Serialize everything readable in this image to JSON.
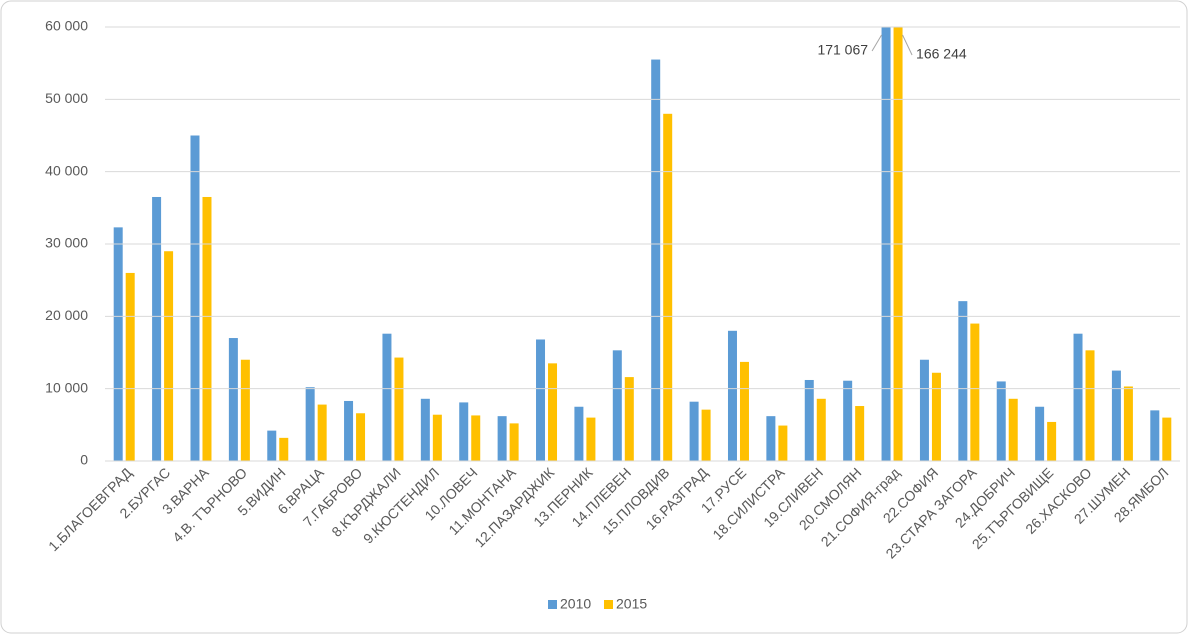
{
  "chart_data": {
    "type": "bar",
    "categories": [
      "1.БЛАГОЕВГРАД",
      "2.БУРГАС",
      "3.ВАРНА",
      "4.В. ТЪРНОВО",
      "5.ВИДИН",
      "6.ВРАЦА",
      "7.ГАБРОВО",
      "8.КЪРДЖАЛИ",
      "9.КЮСТЕНДИЛ",
      "10.ЛОВЕЧ",
      "11.МОНТАНА",
      "12.ПАЗАРДЖИК",
      "13.ПЕРНИК",
      "14.ПЛЕВЕН",
      "15.ПЛОВДИВ",
      "16.РАЗГРАД",
      "17.РУСЕ",
      "18.СИЛИСТРА",
      "19.СЛИВЕН",
      "20.СМОЛЯН",
      "21.СОФИЯ-град",
      "22.СОФИЯ",
      "23.СТАРА ЗАГОРА",
      "24.ДОБРИЧ",
      "25.ТЪРГОВИЩЕ",
      "26.ХАСКОВО",
      "27.ШУМЕН",
      "28.ЯМБОЛ"
    ],
    "series": [
      {
        "name": "2010",
        "color": "#5b9bd5",
        "values": [
          32300,
          36500,
          45000,
          17000,
          4200,
          10200,
          8300,
          17600,
          8600,
          8100,
          6200,
          16800,
          7500,
          15300,
          55500,
          8200,
          18000,
          6200,
          11200,
          11100,
          171067,
          14000,
          22100,
          11000,
          7500,
          17600,
          12500,
          7000
        ],
        "value_labels": [
          null,
          null,
          null,
          null,
          null,
          null,
          null,
          null,
          null,
          null,
          null,
          null,
          null,
          null,
          null,
          null,
          null,
          null,
          null,
          null,
          "171 067",
          null,
          null,
          null,
          null,
          null,
          null,
          null
        ]
      },
      {
        "name": "2015",
        "color": "#ffc000",
        "values": [
          26000,
          29000,
          36500,
          14000,
          3200,
          7800,
          6600,
          14300,
          6400,
          6300,
          5200,
          13500,
          6000,
          11600,
          48000,
          7100,
          13700,
          4900,
          8600,
          7600,
          166244,
          12200,
          19000,
          8600,
          5400,
          15300,
          10300,
          6000
        ],
        "value_labels": [
          null,
          null,
          null,
          null,
          null,
          null,
          null,
          null,
          null,
          null,
          null,
          null,
          null,
          null,
          null,
          null,
          null,
          null,
          null,
          null,
          "166 244",
          null,
          null,
          null,
          null,
          null,
          null,
          null
        ]
      }
    ],
    "ylim": [
      0,
      60000
    ],
    "yticks": [
      0,
      {
        "value": 10000,
        "label": "10 000"
      },
      {
        "value": 20000,
        "label": "20 000"
      },
      {
        "value": 30000,
        "label": "30 000"
      },
      {
        "value": 40000,
        "label": "40 000"
      },
      {
        "value": 50000,
        "label": "50 000"
      },
      {
        "value": 60000,
        "label": "60 000"
      }
    ],
    "grid": true,
    "legend": "bottom"
  }
}
